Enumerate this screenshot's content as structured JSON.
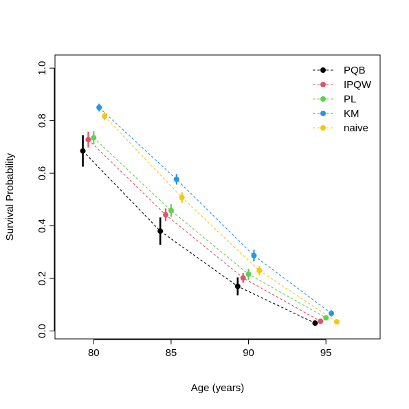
{
  "chart_data": {
    "type": "scatter",
    "xlabel": "Age (years)",
    "ylabel": "Survival Probability",
    "xlim": [
      77.5,
      98.5
    ],
    "ylim": [
      -0.03,
      1.05
    ],
    "xticks": [
      80,
      85,
      90,
      95
    ],
    "yticks": [
      0.0,
      0.2,
      0.4,
      0.6,
      0.8,
      1.0
    ],
    "xtick_labels": [
      "80",
      "85",
      "90",
      "95"
    ],
    "ytick_labels": [
      "0.0",
      "0.2",
      "0.4",
      "0.6",
      "0.8",
      "1.0"
    ],
    "grid": false,
    "legend_position": "top-right",
    "series": [
      {
        "name": "PQB",
        "color": "#000000",
        "x": [
          79.3,
          84.3,
          89.3,
          94.3
        ],
        "y": [
          0.685,
          0.38,
          0.17,
          0.03
        ],
        "lower": [
          0.625,
          0.328,
          0.136,
          0.026
        ],
        "upper": [
          0.745,
          0.432,
          0.204,
          0.036
        ]
      },
      {
        "name": "IPQW",
        "color": "#DF536B",
        "x": [
          79.65,
          84.65,
          89.65,
          94.65
        ],
        "y": [
          0.728,
          0.442,
          0.202,
          0.037
        ],
        "lower": [
          0.698,
          0.418,
          0.183,
          0.033
        ],
        "upper": [
          0.758,
          0.466,
          0.221,
          0.041
        ]
      },
      {
        "name": "PL",
        "color": "#61D04F",
        "x": [
          80.0,
          85.0,
          90.0,
          95.0
        ],
        "y": [
          0.735,
          0.458,
          0.216,
          0.05
        ],
        "lower": [
          0.71,
          0.434,
          0.195,
          0.044
        ],
        "upper": [
          0.76,
          0.482,
          0.237,
          0.056
        ]
      },
      {
        "name": "KM",
        "color": "#2297E6",
        "x": [
          80.35,
          85.35,
          90.35,
          95.35
        ],
        "y": [
          0.85,
          0.577,
          0.287,
          0.067
        ],
        "lower": [
          0.835,
          0.557,
          0.265,
          0.055
        ],
        "upper": [
          0.865,
          0.597,
          0.309,
          0.079
        ]
      },
      {
        "name": "naive",
        "color": "#F5C710",
        "x": [
          80.7,
          85.7,
          90.7,
          95.7
        ],
        "y": [
          0.817,
          0.508,
          0.23,
          0.035
        ],
        "lower": [
          0.802,
          0.488,
          0.212,
          0.031
        ],
        "upper": [
          0.832,
          0.528,
          0.248,
          0.039
        ]
      }
    ]
  }
}
